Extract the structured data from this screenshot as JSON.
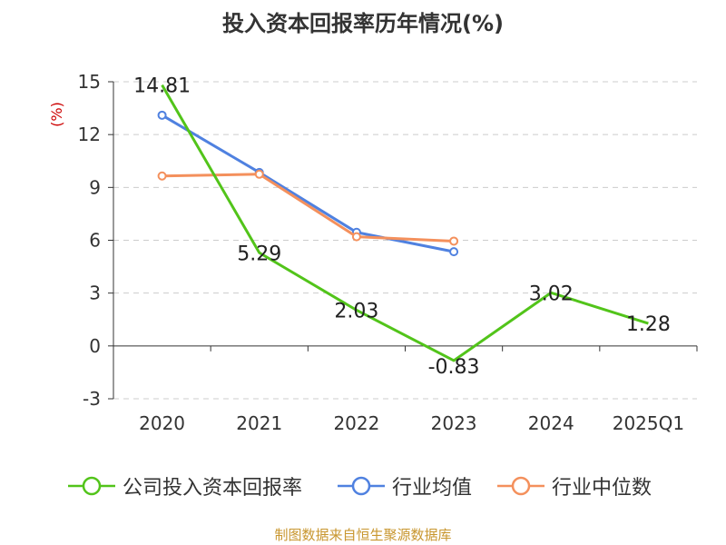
{
  "title": "投入资本回报率历年情况(%)",
  "source_note": "制图数据来自恒生聚源数据库",
  "chart_data": {
    "type": "line",
    "title": "投入资本回报率历年情况(%)",
    "ylabel": "(%)",
    "xlabel": "",
    "categories": [
      "2020",
      "2021",
      "2022",
      "2023",
      "2024",
      "2025Q1"
    ],
    "ylim": [
      -3,
      15
    ],
    "yticks": [
      -3,
      0,
      3,
      6,
      9,
      12,
      15
    ],
    "grid": true,
    "legend_position": "bottom",
    "series": [
      {
        "name": "公司投入资本回报率",
        "color": "#52c41a",
        "values": [
          14.81,
          5.29,
          2.03,
          -0.83,
          3.02,
          1.28
        ],
        "labels": [
          "14.81",
          "5.29",
          "2.03",
          "-0.83",
          "3.02",
          "1.28"
        ]
      },
      {
        "name": "行业均值",
        "color": "#4f81e0",
        "values": [
          13.1,
          9.85,
          6.45,
          5.35,
          null,
          null
        ]
      },
      {
        "name": "行业中位数",
        "color": "#f4905c",
        "values": [
          9.65,
          9.75,
          6.2,
          5.95,
          null,
          null
        ]
      }
    ]
  }
}
